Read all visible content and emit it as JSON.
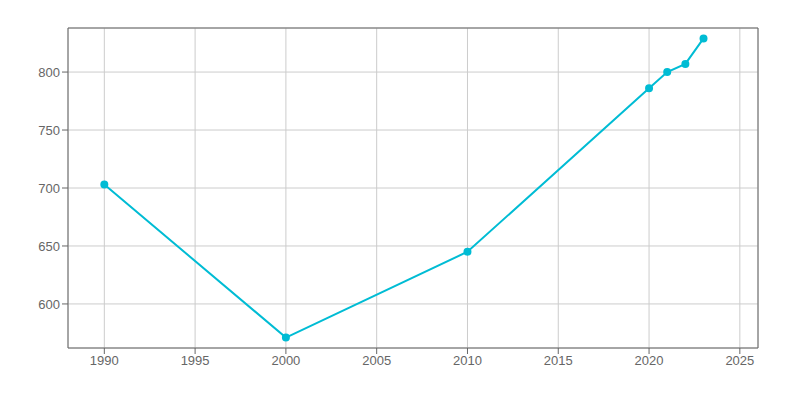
{
  "chart_data": {
    "type": "line",
    "x": [
      1990,
      2000,
      2010,
      2020,
      2021,
      2022,
      2023
    ],
    "values": [
      703,
      571,
      645,
      786,
      800,
      807,
      829
    ],
    "color": "#00BCD4",
    "marker": "circle",
    "xlim": [
      1988,
      2026
    ],
    "xticks": [
      1990,
      1995,
      2000,
      2005,
      2010,
      2015,
      2020,
      2025
    ],
    "ylim": [
      562,
      838
    ],
    "yticks": [
      600,
      650,
      700,
      750,
      800
    ],
    "grid": true
  }
}
